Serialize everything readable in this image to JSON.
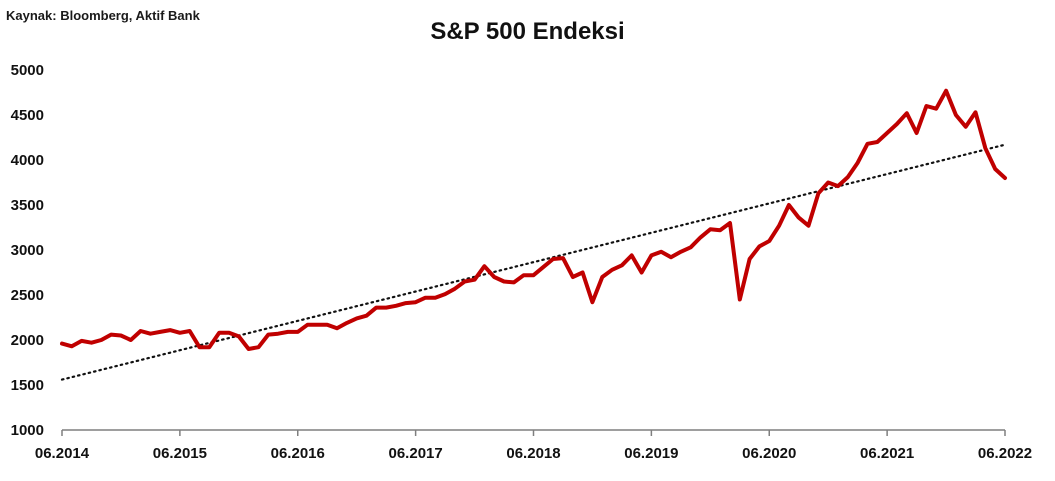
{
  "source": "Kaynak: Bloomberg, Aktif Bank",
  "chart_data": {
    "type": "line",
    "title": "S&P 500 Endeksi",
    "xlabel": "",
    "ylabel": "",
    "ylim": [
      1000,
      5000
    ],
    "yticks": [
      1000,
      1500,
      2000,
      2500,
      3000,
      3500,
      4000,
      4500,
      5000
    ],
    "xticks": [
      "06.2014",
      "06.2015",
      "06.2016",
      "06.2017",
      "06.2018",
      "06.2019",
      "06.2020",
      "06.2021",
      "06.2022"
    ],
    "xlim": [
      "06.2014",
      "06.2022"
    ],
    "grid": false,
    "legend": "none",
    "series": [
      {
        "color": "#c00000",
        "style": "solid",
        "x": [
          "06.2014",
          "07.2014",
          "08.2014",
          "09.2014",
          "10.2014",
          "11.2014",
          "12.2014",
          "01.2015",
          "02.2015",
          "03.2015",
          "04.2015",
          "05.2015",
          "06.2015",
          "07.2015",
          "08.2015",
          "09.2015",
          "10.2015",
          "11.2015",
          "12.2015",
          "01.2016",
          "02.2016",
          "03.2016",
          "04.2016",
          "05.2016",
          "06.2016",
          "07.2016",
          "08.2016",
          "09.2016",
          "10.2016",
          "11.2016",
          "12.2016",
          "01.2017",
          "02.2017",
          "03.2017",
          "04.2017",
          "05.2017",
          "06.2017",
          "07.2017",
          "08.2017",
          "09.2017",
          "10.2017",
          "11.2017",
          "12.2017",
          "01.2018",
          "02.2018",
          "03.2018",
          "04.2018",
          "05.2018",
          "06.2018",
          "07.2018",
          "08.2018",
          "09.2018",
          "10.2018",
          "11.2018",
          "12.2018",
          "01.2019",
          "02.2019",
          "03.2019",
          "04.2019",
          "05.2019",
          "06.2019",
          "07.2019",
          "08.2019",
          "09.2019",
          "10.2019",
          "11.2019",
          "12.2019",
          "01.2020",
          "02.2020",
          "03.2020",
          "04.2020",
          "05.2020",
          "06.2020",
          "07.2020",
          "08.2020",
          "09.2020",
          "10.2020",
          "11.2020",
          "12.2020",
          "01.2021",
          "02.2021",
          "03.2021",
          "04.2021",
          "05.2021",
          "06.2021",
          "07.2021",
          "08.2021",
          "09.2021",
          "10.2021",
          "11.2021",
          "12.2021",
          "01.2022",
          "02.2022",
          "03.2022",
          "04.2022",
          "05.2022",
          "06.2022"
        ],
        "y": [
          1960,
          1930,
          1990,
          1970,
          2000,
          2060,
          2050,
          2000,
          2100,
          2070,
          2090,
          2110,
          2080,
          2100,
          1920,
          1920,
          2080,
          2080,
          2040,
          1900,
          1920,
          2060,
          2070,
          2090,
          2090,
          2170,
          2170,
          2170,
          2130,
          2190,
          2240,
          2270,
          2360,
          2360,
          2380,
          2410,
          2420,
          2470,
          2470,
          2510,
          2570,
          2650,
          2670,
          2820,
          2700,
          2650,
          2640,
          2720,
          2720,
          2810,
          2900,
          2910,
          2700,
          2750,
          2420,
          2700,
          2780,
          2830,
          2940,
          2750,
          2940,
          2980,
          2920,
          2980,
          3030,
          3140,
          3230,
          3220,
          3300,
          2450,
          2900,
          3040,
          3100,
          3270,
          3500,
          3360,
          3270,
          3630,
          3750,
          3710,
          3810,
          3970,
          4180,
          4200,
          4300,
          4400,
          4520,
          4300,
          4600,
          4570,
          4770,
          4500,
          4370,
          4530,
          4130,
          3900,
          3800
        ]
      },
      {
        "color": "#111111",
        "style": "dotted",
        "x": [
          "06.2014",
          "06.2022"
        ],
        "y": [
          1560,
          4170
        ]
      }
    ]
  }
}
